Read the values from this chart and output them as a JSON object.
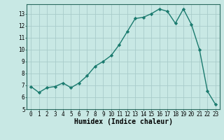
{
  "x": [
    0,
    1,
    2,
    3,
    4,
    5,
    6,
    7,
    8,
    9,
    10,
    11,
    12,
    13,
    14,
    15,
    16,
    17,
    18,
    19,
    20,
    21,
    22,
    23
  ],
  "y": [
    6.9,
    6.4,
    6.8,
    6.9,
    7.2,
    6.8,
    7.2,
    7.8,
    8.6,
    9.0,
    9.5,
    10.4,
    11.5,
    12.6,
    12.7,
    13.0,
    13.4,
    13.2,
    12.2,
    13.4,
    12.1,
    10.0,
    6.5,
    5.4
  ],
  "line_color": "#1a7a6e",
  "marker": "D",
  "markersize": 2.2,
  "linewidth": 1.0,
  "bg_color": "#c8e8e4",
  "grid_color": "#a8ccca",
  "xlabel": "Humidex (Indice chaleur)",
  "xlabel_fontsize": 7,
  "ylim": [
    5,
    13.8
  ],
  "xlim": [
    -0.5,
    23.5
  ],
  "yticks": [
    5,
    6,
    7,
    8,
    9,
    10,
    11,
    12,
    13
  ],
  "xticks": [
    0,
    1,
    2,
    3,
    4,
    5,
    6,
    7,
    8,
    9,
    10,
    11,
    12,
    13,
    14,
    15,
    16,
    17,
    18,
    19,
    20,
    21,
    22,
    23
  ],
  "tick_fontsize": 5.5
}
